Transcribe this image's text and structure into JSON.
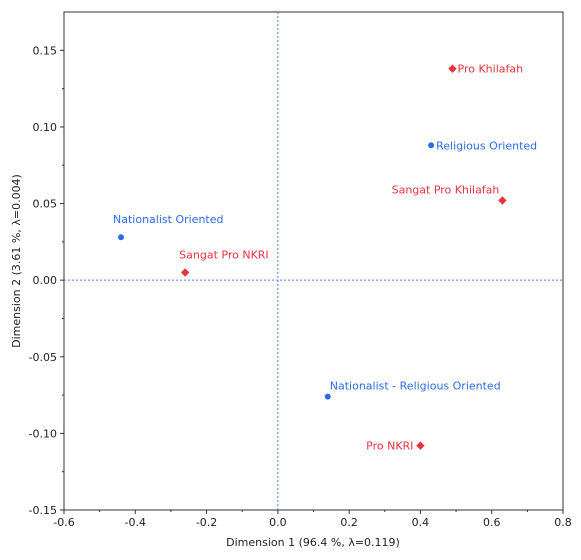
{
  "chart_data": {
    "type": "scatter",
    "xlabel": "Dimension 1  (96.4 %, λ=0.119)",
    "ylabel": "Dimension 2  (3.61 %, λ=0.004)",
    "xlim": [
      -0.6,
      0.8
    ],
    "ylim": [
      -0.15,
      0.175
    ],
    "x_ticks": [
      "-0.6",
      "-0.4",
      "-0.2",
      "0.0",
      "0.2",
      "0.4",
      "0.6",
      "0.8"
    ],
    "x_tick_values": [
      -0.6,
      -0.4,
      -0.2,
      0.0,
      0.2,
      0.4,
      0.6,
      0.8
    ],
    "y_ticks": [
      "0.15",
      "0.10",
      "0.05",
      "0.00",
      "-0.05",
      "-0.10",
      "-0.15"
    ],
    "y_tick_values": [
      0.15,
      0.1,
      0.05,
      0.0,
      -0.05,
      -0.1,
      -0.15
    ],
    "reference_lines": {
      "x": 0,
      "y": 0
    },
    "series": [
      {
        "marker": "circle",
        "color": "#2f6ae6",
        "points": [
          {
            "label": "Nationalist Oriented",
            "x": -0.44,
            "y": 0.028
          },
          {
            "label": "Religious Oriented",
            "x": 0.43,
            "y": 0.088
          },
          {
            "label": "Nationalist - Religious Oriented",
            "x": 0.14,
            "y": -0.076
          }
        ]
      },
      {
        "marker": "diamond",
        "color": "#e8333f",
        "points": [
          {
            "label": "Pro Khilafah",
            "x": 0.49,
            "y": 0.138
          },
          {
            "label": "Sangat Pro Khilafah",
            "x": 0.63,
            "y": 0.052
          },
          {
            "label": "Sangat Pro NKRI",
            "x": -0.26,
            "y": 0.005
          },
          {
            "label": "Pro NKRI",
            "x": 0.4,
            "y": -0.108
          }
        ]
      }
    ]
  }
}
